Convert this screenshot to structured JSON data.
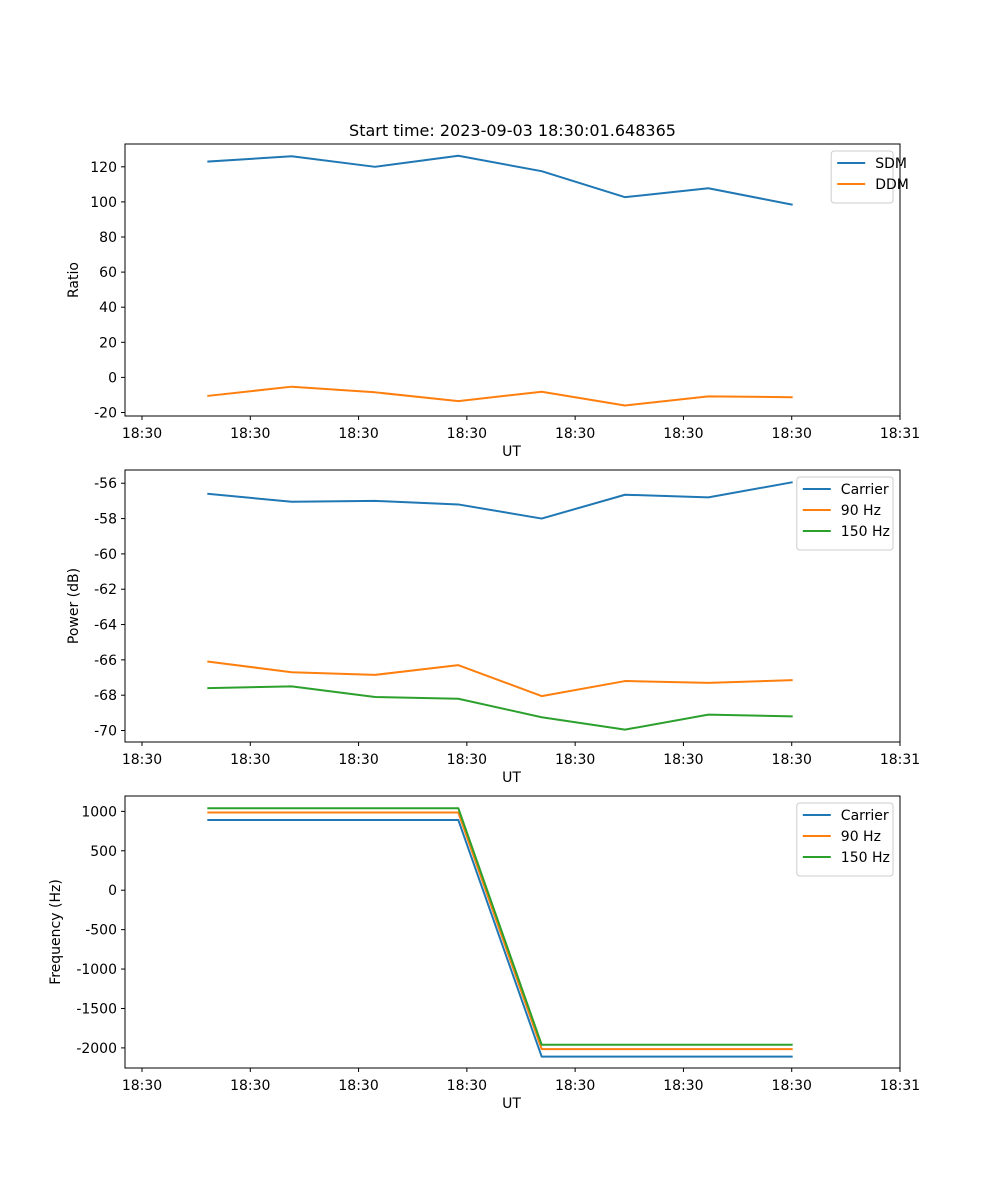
{
  "chart_data": [
    {
      "type": "line",
      "title": "Start time: 2023-09-03 18:30:01.648365",
      "xlabel": "UT",
      "ylabel": "Ratio",
      "xticks": [
        "18:30",
        "18:30",
        "18:30",
        "18:30",
        "18:30",
        "18:30",
        "18:30",
        "18:31"
      ],
      "xlim": [
        0,
        9.3
      ],
      "ylim": [
        -22,
        133
      ],
      "yticks": [
        -20,
        0,
        20,
        40,
        60,
        80,
        100,
        120
      ],
      "legend": "top-right",
      "x": [
        1,
        2,
        3,
        4,
        5,
        6,
        7,
        8
      ],
      "series": [
        {
          "name": "SDM",
          "color": "#1f77b4",
          "values": [
            123,
            126,
            120,
            126.3,
            117.5,
            102.7,
            107.8,
            98.5
          ]
        },
        {
          "name": "DDM",
          "color": "#ff7f0e",
          "values": [
            -10.5,
            -5.3,
            -8.5,
            -13.5,
            -8.2,
            -16,
            -10.8,
            -11.3
          ]
        }
      ]
    },
    {
      "type": "line",
      "title": "",
      "xlabel": "UT",
      "ylabel": "Power (dB)",
      "xticks": [
        "18:30",
        "18:30",
        "18:30",
        "18:30",
        "18:30",
        "18:30",
        "18:30",
        "18:31"
      ],
      "xlim": [
        0,
        9.3
      ],
      "ylim": [
        -70.65,
        -55.25
      ],
      "yticks": [
        -70,
        -68,
        -66,
        -64,
        -62,
        -60,
        -58,
        -56
      ],
      "legend": "top-right",
      "x": [
        1,
        2,
        3,
        4,
        5,
        6,
        7,
        8
      ],
      "series": [
        {
          "name": "Carrier",
          "color": "#1f77b4",
          "values": [
            -56.6,
            -57.05,
            -57.0,
            -57.2,
            -58.0,
            -56.65,
            -56.8,
            -55.95
          ]
        },
        {
          "name": "90 Hz",
          "color": "#ff7f0e",
          "values": [
            -66.1,
            -66.7,
            -66.85,
            -66.3,
            -68.05,
            -67.2,
            -67.3,
            -67.15
          ]
        },
        {
          "name": "150 Hz",
          "color": "#2ca02c",
          "values": [
            -67.6,
            -67.5,
            -68.1,
            -68.2,
            -69.25,
            -69.95,
            -69.1,
            -69.2
          ]
        }
      ]
    },
    {
      "type": "line",
      "title": "",
      "xlabel": "UT",
      "ylabel": "Frequency (Hz)",
      "xticks": [
        "18:30",
        "18:30",
        "18:30",
        "18:30",
        "18:30",
        "18:30",
        "18:30",
        "18:31"
      ],
      "xlim": [
        0,
        9.3
      ],
      "ylim": [
        -2255,
        1195
      ],
      "yticks": [
        -2000,
        -1500,
        -1000,
        -500,
        0,
        500,
        1000
      ],
      "legend": "top-right",
      "x": [
        1,
        2,
        3,
        4,
        5,
        6,
        7,
        8
      ],
      "series": [
        {
          "name": "Carrier",
          "color": "#1f77b4",
          "values": [
            890,
            890,
            890,
            890,
            -2110,
            -2110,
            -2110,
            -2110
          ]
        },
        {
          "name": "90 Hz",
          "color": "#ff7f0e",
          "values": [
            985,
            985,
            985,
            985,
            -2015,
            -2015,
            -2015,
            -2015
          ]
        },
        {
          "name": "150 Hz",
          "color": "#2ca02c",
          "values": [
            1040,
            1040,
            1040,
            1040,
            -1960,
            -1960,
            -1960,
            -1960
          ]
        }
      ]
    }
  ]
}
